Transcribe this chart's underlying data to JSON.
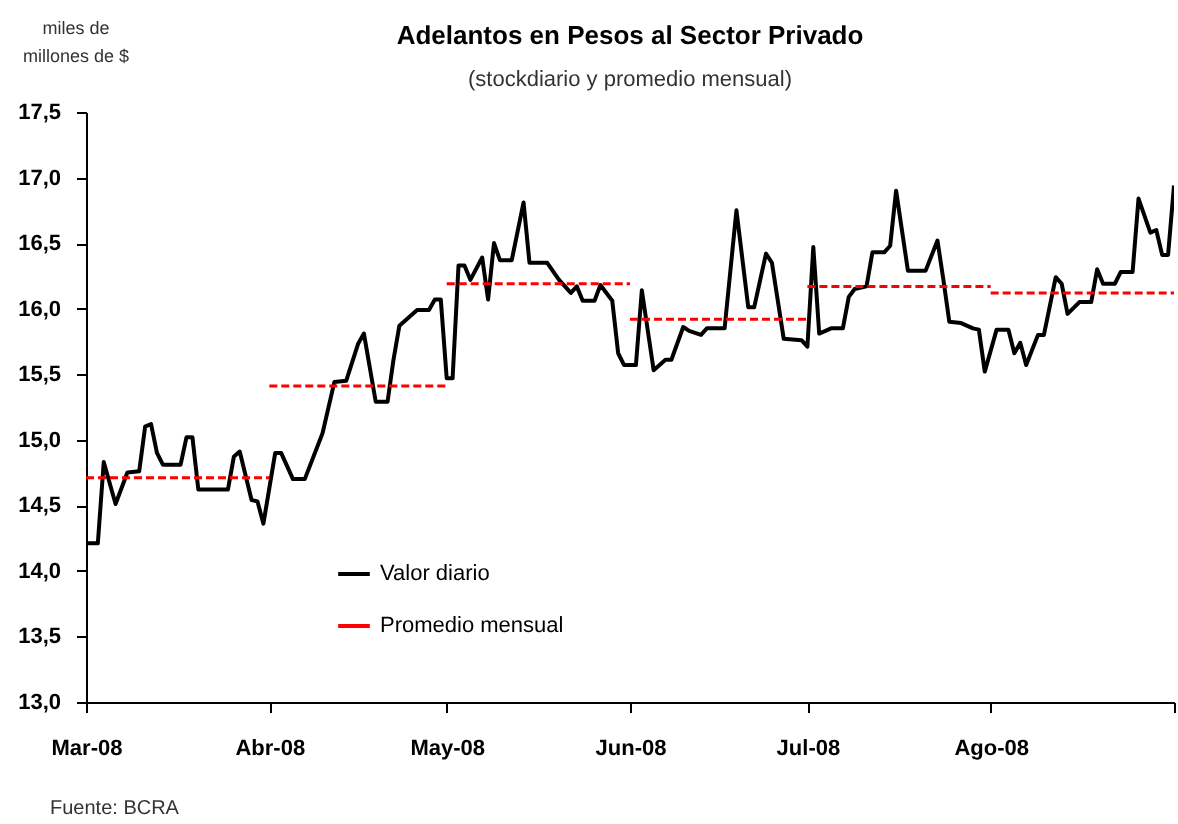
{
  "chart_data": {
    "type": "line",
    "title": "Adelantos en Pesos al Sector Privado",
    "subtitle": "(stockdiario y promedio mensual)",
    "ylabel": "miles de millones de $",
    "xlim": [
      "2008-03-01",
      "2008-09-01"
    ],
    "xticks": [
      {
        "value": "2008-03-01",
        "label": "Mar-08"
      },
      {
        "value": "2008-04-01",
        "label": "Abr-08"
      },
      {
        "value": "2008-05-01",
        "label": "May-08"
      },
      {
        "value": "2008-06-01",
        "label": "Jun-08"
      },
      {
        "value": "2008-07-01",
        "label": "Jul-08"
      },
      {
        "value": "2008-08-01",
        "label": "Ago-08"
      },
      {
        "value": "2008-09-01",
        "label": null
      }
    ],
    "ylim": [
      13,
      17.5
    ],
    "yticks": [
      {
        "value": 13,
        "label": "13,0"
      },
      {
        "value": 13.5,
        "label": "13,5"
      },
      {
        "value": 14,
        "label": "14,0"
      },
      {
        "value": 14.5,
        "label": "14,5"
      },
      {
        "value": 15,
        "label": "15,0"
      },
      {
        "value": 15.5,
        "label": "15,5"
      },
      {
        "value": 16,
        "label": "16,0"
      },
      {
        "value": 16.5,
        "label": "16,5"
      },
      {
        "value": 17,
        "label": "17,0"
      },
      {
        "value": 17.5,
        "label": "17,5"
      }
    ],
    "grid": false,
    "legend": "bottom left",
    "annotations": [
      "Fuente: BCRA"
    ],
    "series": [
      {
        "name": "Valor diario",
        "color": "#000000",
        "line_style": "solid",
        "x": [
          "2008-03-01",
          "2008-03-03",
          "2008-03-04",
          "2008-03-06",
          "2008-03-08",
          "2008-03-10",
          "2008-03-11",
          "2008-03-12",
          "2008-03-13",
          "2008-03-14",
          "2008-03-17",
          "2008-03-18",
          "2008-03-19",
          "2008-03-20",
          "2008-03-25",
          "2008-03-26",
          "2008-03-27",
          "2008-03-29",
          "2008-03-30",
          "2008-03-31",
          "2008-04-02",
          "2008-04-03",
          "2008-04-05",
          "2008-04-07",
          "2008-04-10",
          "2008-04-12",
          "2008-04-14",
          "2008-04-16",
          "2008-04-17",
          "2008-04-19",
          "2008-04-21",
          "2008-04-22",
          "2008-04-23",
          "2008-04-24",
          "2008-04-26",
          "2008-04-28",
          "2008-04-29",
          "2008-04-30",
          "2008-05-01",
          "2008-05-02",
          "2008-05-03",
          "2008-05-04",
          "2008-05-05",
          "2008-05-07",
          "2008-05-08",
          "2008-05-09",
          "2008-05-10",
          "2008-05-12",
          "2008-05-14",
          "2008-05-15",
          "2008-05-18",
          "2008-05-20",
          "2008-05-22",
          "2008-05-23",
          "2008-05-24",
          "2008-05-26",
          "2008-05-27",
          "2008-05-29",
          "2008-05-30",
          "2008-05-31",
          "2008-06-02",
          "2008-06-03",
          "2008-06-05",
          "2008-06-07",
          "2008-06-08",
          "2008-06-10",
          "2008-06-11",
          "2008-06-13",
          "2008-06-14",
          "2008-06-17",
          "2008-06-19",
          "2008-06-21",
          "2008-06-22",
          "2008-06-24",
          "2008-06-25",
          "2008-06-27",
          "2008-06-30",
          "2008-07-01",
          "2008-07-02",
          "2008-07-03",
          "2008-07-05",
          "2008-07-07",
          "2008-07-08",
          "2008-07-09",
          "2008-07-11",
          "2008-07-12",
          "2008-07-14",
          "2008-07-15",
          "2008-07-16",
          "2008-07-18",
          "2008-07-21",
          "2008-07-23",
          "2008-07-24",
          "2008-07-25",
          "2008-07-27",
          "2008-07-29",
          "2008-07-30",
          "2008-07-31",
          "2008-08-02",
          "2008-08-04",
          "2008-08-05",
          "2008-08-06",
          "2008-08-07",
          "2008-08-09",
          "2008-08-10",
          "2008-08-12",
          "2008-08-13",
          "2008-08-14",
          "2008-08-16",
          "2008-08-18",
          "2008-08-19",
          "2008-08-20",
          "2008-08-22",
          "2008-08-23",
          "2008-08-25",
          "2008-08-26",
          "2008-08-28",
          "2008-08-29",
          "2008-08-30",
          "2008-08-31",
          "2008-09-01"
        ],
        "values": [
          14.21,
          14.21,
          14.83,
          14.51,
          14.75,
          14.76,
          15.1,
          15.12,
          14.9,
          14.81,
          14.81,
          15.02,
          15.02,
          14.62,
          14.62,
          14.87,
          14.91,
          14.54,
          14.53,
          14.36,
          14.9,
          14.9,
          14.7,
          14.7,
          15.05,
          15.44,
          15.45,
          15.73,
          15.81,
          15.29,
          15.29,
          15.61,
          15.87,
          15.91,
          15.99,
          15.99,
          16.07,
          16.07,
          15.47,
          15.47,
          16.33,
          16.33,
          16.22,
          16.39,
          16.07,
          16.5,
          16.37,
          16.37,
          16.81,
          16.35,
          16.35,
          16.22,
          16.12,
          16.17,
          16.06,
          16.06,
          16.18,
          16.06,
          15.66,
          15.57,
          15.57,
          16.14,
          15.53,
          15.61,
          15.61,
          15.86,
          15.83,
          15.8,
          15.85,
          15.85,
          16.75,
          16.01,
          16.01,
          16.42,
          16.35,
          15.77,
          15.76,
          15.71,
          16.47,
          15.81,
          15.85,
          15.85,
          16.09,
          16.15,
          16.17,
          16.43,
          16.43,
          16.48,
          16.9,
          16.29,
          16.29,
          16.52,
          16.22,
          15.9,
          15.89,
          15.85,
          15.84,
          15.52,
          15.84,
          15.84,
          15.66,
          15.74,
          15.57,
          15.8,
          15.8,
          16.24,
          16.19,
          15.96,
          16.05,
          16.05,
          16.3,
          16.19,
          16.19,
          16.28,
          16.28,
          16.84,
          16.58,
          16.6,
          16.41,
          16.41,
          16.94
        ]
      },
      {
        "name": "Promedio mensual",
        "type": "step",
        "color": "#ff0000",
        "line_style": "dashed",
        "x": [
          "2008-03-01",
          "2008-04-01",
          "2008-05-01",
          "2008-06-01",
          "2008-07-01",
          "2008-08-01",
          "2008-09-01"
        ],
        "values": [
          14.71,
          15.41,
          16.19,
          15.92,
          16.17,
          16.12,
          16.12
        ]
      }
    ]
  }
}
